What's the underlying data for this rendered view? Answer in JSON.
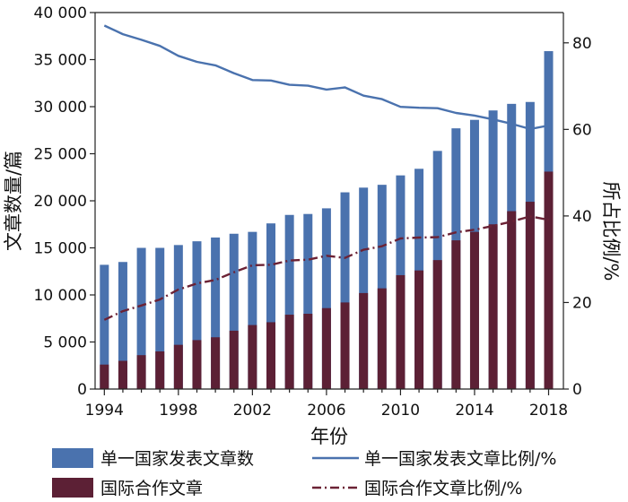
{
  "chart_data": {
    "type": "bar",
    "title": "",
    "xlabel": "年份",
    "ylabel": "文章数量/篇",
    "y2label": "所占比例/%",
    "ylim": [
      0,
      40000
    ],
    "y2lim": [
      0,
      87
    ],
    "xlim": [
      1993.5,
      2018.8
    ],
    "yticks": [
      0,
      5000,
      10000,
      15000,
      20000,
      25000,
      30000,
      35000,
      40000
    ],
    "ytick_labels": [
      "0",
      "5 000",
      "10 000",
      "15 000",
      "20 000",
      "25 000",
      "30 000",
      "35 000",
      "40 000"
    ],
    "y2ticks": [
      0,
      20,
      40,
      60,
      80
    ],
    "y2tick_labels": [
      "0",
      "20",
      "40",
      "60",
      "80"
    ],
    "xticks": [
      1994,
      1998,
      2002,
      2006,
      2010,
      2014,
      2018
    ],
    "xtick_labels": [
      "1994",
      "1998",
      "2002",
      "2006",
      "2010",
      "2014",
      "2018"
    ],
    "grid": false,
    "legend_position": "bottom",
    "categories": [
      1994,
      1995,
      1996,
      1997,
      1998,
      1999,
      2000,
      2001,
      2002,
      2003,
      2004,
      2005,
      2006,
      2007,
      2008,
      2009,
      2010,
      2011,
      2012,
      2013,
      2014,
      2015,
      2016,
      2017,
      2018
    ],
    "series": [
      {
        "name": "单一国家发表文章数",
        "type": "bar",
        "axis": "left",
        "color": "#4a72ae",
        "values": [
          13200,
          13500,
          15000,
          15000,
          15300,
          15700,
          16100,
          16500,
          16700,
          17600,
          18500,
          18600,
          19200,
          20900,
          21400,
          21700,
          22700,
          23400,
          25300,
          27700,
          28600,
          29600,
          30300,
          30500,
          35900
        ]
      },
      {
        "name": "国际合作文章",
        "type": "bar",
        "axis": "left",
        "color": "#5c2035",
        "values": [
          2600,
          3000,
          3600,
          4000,
          4700,
          5200,
          5500,
          6200,
          6800,
          7100,
          7900,
          8000,
          8600,
          9200,
          10200,
          10700,
          12100,
          12600,
          13700,
          15800,
          16700,
          17500,
          18900,
          19900,
          23100
        ]
      },
      {
        "name": "单一国家发表文章比例/%",
        "type": "line",
        "axis": "right",
        "color": "#4a72ae",
        "dash": "solid",
        "values": [
          84.0,
          82.0,
          80.7,
          79.3,
          77.0,
          75.6,
          74.8,
          73.0,
          71.4,
          71.3,
          70.3,
          70.1,
          69.2,
          69.7,
          67.8,
          67.0,
          65.2,
          65.0,
          64.9,
          63.8,
          63.2,
          62.3,
          61.3,
          60.1,
          60.9
        ]
      },
      {
        "name": "国际合作文章比例/%",
        "type": "line",
        "axis": "right",
        "color": "#6b2235",
        "dash": "dash-dot",
        "values": [
          16.0,
          18.0,
          19.3,
          20.7,
          23.0,
          24.4,
          25.2,
          27.0,
          28.6,
          28.7,
          29.7,
          29.9,
          30.8,
          30.3,
          32.2,
          33.0,
          34.8,
          35.0,
          35.1,
          36.2,
          36.8,
          37.7,
          38.7,
          39.9,
          39.1
        ]
      }
    ]
  }
}
